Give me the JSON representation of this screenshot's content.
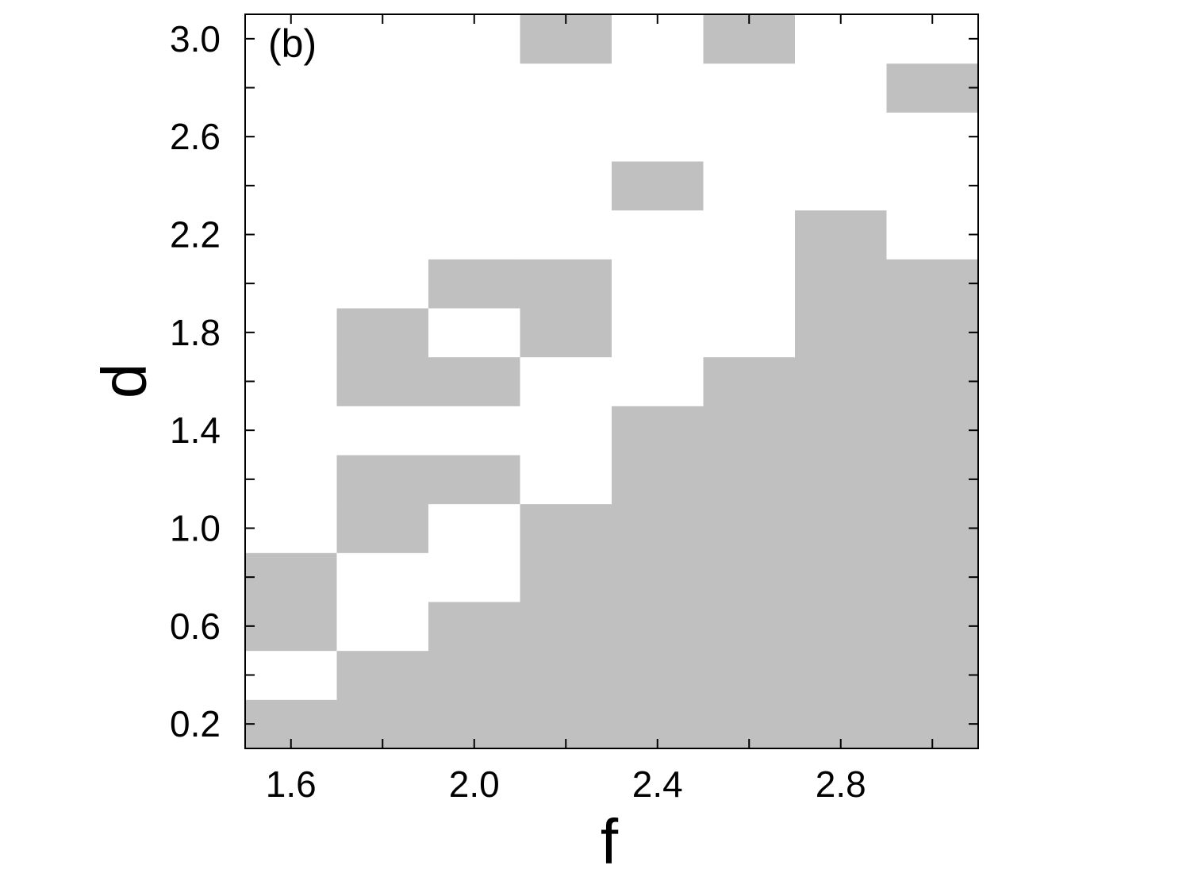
{
  "chart_data": {
    "type": "heatmap",
    "annotation": "(b)",
    "xlabel": "f",
    "ylabel": "d",
    "x": [
      1.6,
      1.8,
      2.0,
      2.2,
      2.4,
      2.6,
      2.8,
      3.0
    ],
    "y": [
      0.2,
      0.4,
      0.6,
      0.8,
      1.0,
      1.2,
      1.4,
      1.6,
      1.8,
      2.0,
      2.2,
      2.4,
      2.6,
      2.8,
      3.0
    ],
    "z": [
      [
        1,
        1,
        1,
        1,
        1,
        1,
        1,
        1
      ],
      [
        0,
        1,
        1,
        1,
        1,
        1,
        1,
        1
      ],
      [
        1,
        0,
        1,
        1,
        1,
        1,
        1,
        1
      ],
      [
        1,
        0,
        0,
        1,
        1,
        1,
        1,
        1
      ],
      [
        0,
        1,
        0,
        1,
        1,
        1,
        1,
        1
      ],
      [
        0,
        1,
        1,
        0,
        1,
        1,
        1,
        1
      ],
      [
        0,
        0,
        0,
        0,
        1,
        1,
        1,
        1
      ],
      [
        0,
        1,
        1,
        0,
        0,
        1,
        1,
        1
      ],
      [
        0,
        1,
        0,
        1,
        0,
        0,
        1,
        1
      ],
      [
        0,
        0,
        1,
        1,
        0,
        0,
        1,
        1
      ],
      [
        0,
        0,
        0,
        0,
        0,
        0,
        1,
        0
      ],
      [
        0,
        0,
        0,
        0,
        1,
        0,
        0,
        0
      ],
      [
        0,
        0,
        0,
        0,
        0,
        0,
        0,
        0
      ],
      [
        0,
        0,
        0,
        0,
        0,
        0,
        0,
        1
      ],
      [
        0,
        0,
        0,
        1,
        0,
        1,
        0,
        0
      ]
    ],
    "colors": [
      "#ffffff",
      "#c0c0c0"
    ],
    "xlim": [
      1.5,
      3.1
    ],
    "ylim": [
      0.1,
      3.1
    ],
    "xticks": [
      1.6,
      {
        "value": 2,
        "label": "2.0"
      },
      2.4,
      2.8
    ],
    "xminorticks": [
      1.8,
      2.2,
      2.6,
      3.0
    ],
    "yticks": [
      0.2,
      0.6,
      {
        "value": 1,
        "label": "1.0"
      },
      1.4,
      1.8,
      2.2,
      2.6,
      {
        "value": 3,
        "label": "3.0"
      }
    ],
    "yminorticks": [
      0.4,
      0.8,
      1.2,
      1.6,
      2.0,
      2.4,
      2.8
    ]
  }
}
